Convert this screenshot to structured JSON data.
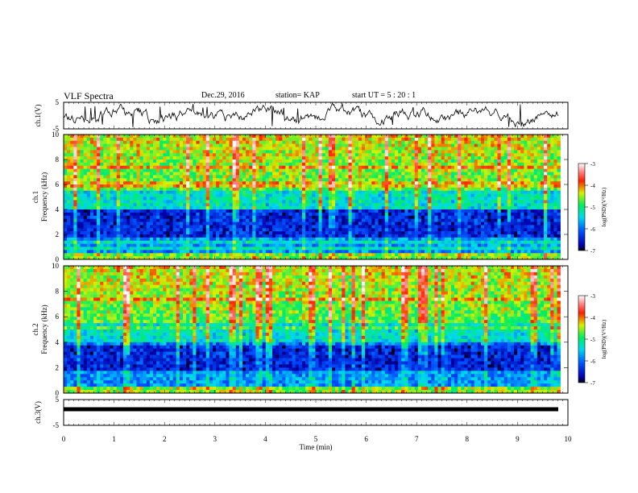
{
  "header": {
    "title": "VLF Spectra",
    "date": "Dec.29, 2016",
    "station": "station= KAP",
    "start": "start  UT =   5  : 20 : 1"
  },
  "chart_data": [
    {
      "type": "line",
      "name": "ch1-waveform",
      "ylabel": "ch.1(V)",
      "ylim": [
        -5,
        5
      ],
      "yticks": [
        "5",
        "-5"
      ],
      "xlim": [
        0,
        10
      ]
    },
    {
      "type": "heatmap",
      "name": "ch1-spectrogram",
      "ylabel_line1": "ch.1",
      "ylabel_line2": "Frequency (kHz)",
      "ylim": [
        0,
        10
      ],
      "yticks": [
        "0",
        "2",
        "4",
        "6",
        "8",
        "10"
      ],
      "xlim": [
        0,
        9.85
      ],
      "colorbar": {
        "label": "log(PSD)(V²/Hz)",
        "range": [
          -7,
          -3
        ],
        "ticks": [
          "-3",
          "-4",
          "-5",
          "-6",
          "-7"
        ]
      }
    },
    {
      "type": "heatmap",
      "name": "ch2-spectrogram",
      "ylabel_line1": "ch.2",
      "ylabel_line2": "Frequency (kHz)",
      "ylim": [
        0,
        10
      ],
      "yticks": [
        "0",
        "2",
        "4",
        "6",
        "8",
        "10"
      ],
      "xlim": [
        0,
        9.85
      ],
      "colorbar": {
        "label": "log(PSD)(V²/Hz)",
        "range": [
          -7,
          -3
        ],
        "ticks": [
          "-3",
          "-4",
          "-5",
          "-6",
          "-7"
        ]
      }
    },
    {
      "type": "line",
      "name": "ch3-waveform",
      "ylabel": "ch.3(V)",
      "ylim": [
        -5,
        5
      ],
      "yticks": [
        "5",
        "-5"
      ],
      "xlim": [
        0,
        10
      ],
      "level": 0
    }
  ],
  "xaxis": {
    "label": "Time  (min)",
    "ticks": [
      "0",
      "1",
      "2",
      "3",
      "4",
      "5",
      "6",
      "7",
      "8",
      "9",
      "10"
    ]
  }
}
